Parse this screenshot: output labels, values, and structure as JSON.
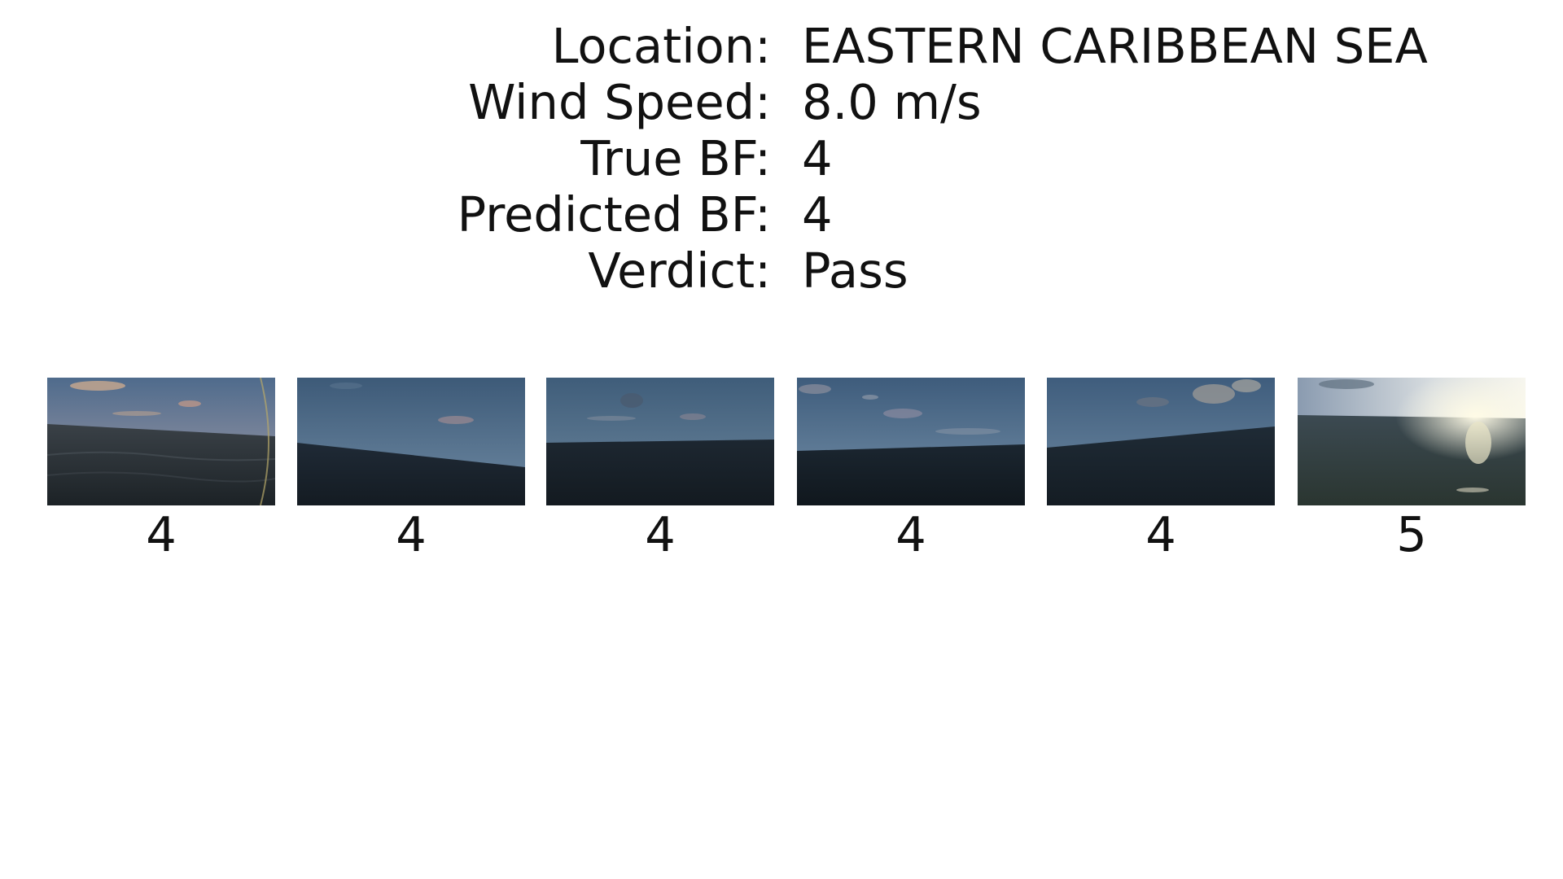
{
  "info": {
    "location_label": "Location:",
    "location_value": "EASTERN CARIBBEAN SEA",
    "wind_speed_label": "Wind Speed:",
    "wind_speed_value": "8.0 m/s",
    "true_bf_label": "True BF:",
    "true_bf_value": "4",
    "predicted_bf_label": "Predicted BF:",
    "predicted_bf_value": "4",
    "verdict_label": "Verdict:",
    "verdict_value": "Pass"
  },
  "frames": [
    {
      "label": "4"
    },
    {
      "label": "4"
    },
    {
      "label": "4"
    },
    {
      "label": "4"
    },
    {
      "label": "4"
    },
    {
      "label": "5"
    }
  ]
}
